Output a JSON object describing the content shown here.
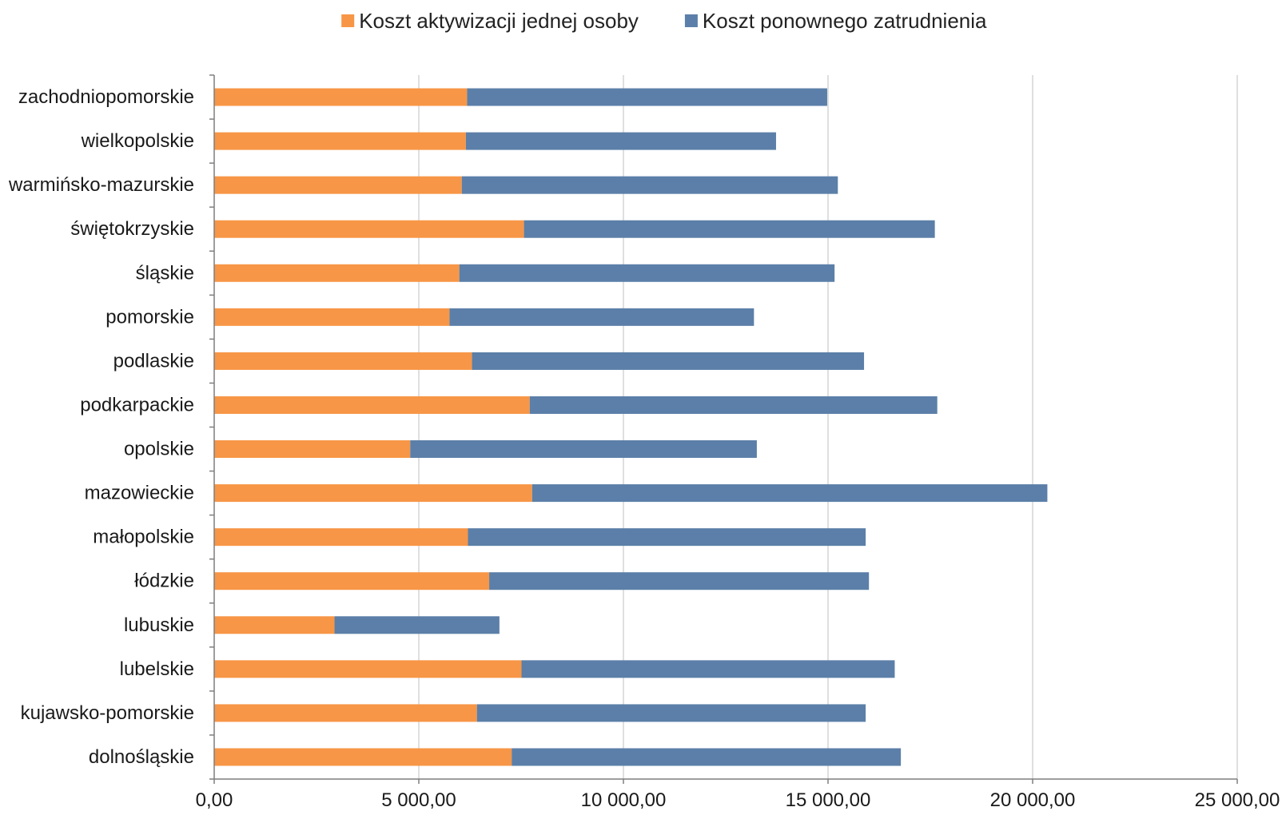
{
  "chart_data": {
    "type": "bar",
    "orientation": "horizontal",
    "stacked": true,
    "categories": [
      "zachodniopomorskie",
      "wielkopolskie",
      "warmińsko-mazurskie",
      "świętokrzyskie",
      "śląskie",
      "pomorskie",
      "podlaskie",
      "podkarpackie",
      "opolskie",
      "mazowieckie",
      "małopolskie",
      "łódzkie",
      "lubuskie",
      "lubelskie",
      "kujawsko-pomorskie",
      "dolnośląskie"
    ],
    "series": [
      {
        "name": "Koszt aktywizacji jednej osoby",
        "color": "#F79646",
        "values": [
          6180,
          6150,
          6050,
          7570,
          5990,
          5750,
          6300,
          7710,
          4790,
          7770,
          6200,
          6720,
          2940,
          7510,
          6420,
          7270
        ]
      },
      {
        "name": "Koszt ponownego zatrudnienia",
        "color": "#5B7FA8",
        "values": [
          8800,
          7580,
          9190,
          10040,
          9170,
          7440,
          9580,
          9960,
          8470,
          12590,
          9720,
          9280,
          4030,
          9120,
          9500,
          9510
        ]
      }
    ],
    "xlim": [
      0,
      25000
    ],
    "xticks": [
      {
        "value": 0,
        "label": "0,00"
      },
      {
        "value": 5000,
        "label": "5 000,00"
      },
      {
        "value": 10000,
        "label": "10 000,00"
      },
      {
        "value": 15000,
        "label": "15 000,00"
      },
      {
        "value": 20000,
        "label": "20 000,00"
      },
      {
        "value": 25000,
        "label": "25 000,00"
      }
    ],
    "title": "",
    "xlabel": "",
    "ylabel": "",
    "grid": "vertical",
    "legend_position": "top-center"
  }
}
